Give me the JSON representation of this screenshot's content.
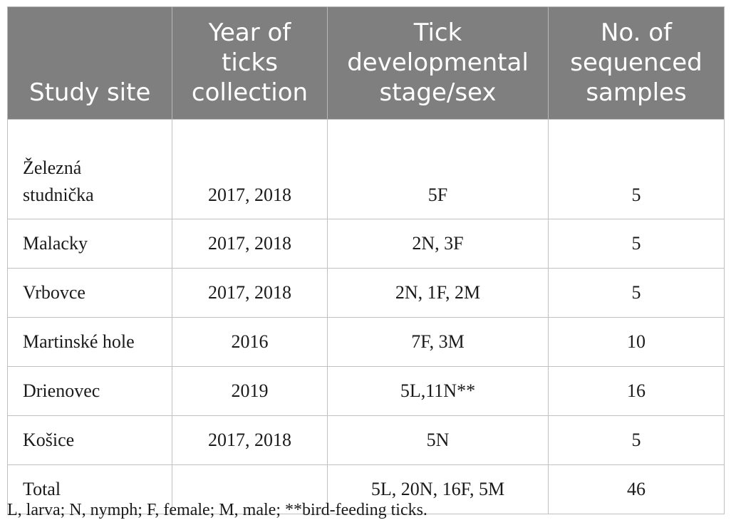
{
  "table": {
    "headers": [
      [
        "Study site"
      ],
      [
        "Year of",
        "ticks",
        "collection"
      ],
      [
        "Tick",
        "developmental",
        "stage/sex"
      ],
      [
        "No. of",
        "sequenced",
        "samples"
      ]
    ],
    "rows": [
      {
        "site_lines": [
          "Železná",
          "studnička"
        ],
        "year": "2017, 2018",
        "stage": "5F",
        "samples": "5"
      },
      {
        "site": "Malacky",
        "year": "2017, 2018",
        "stage": "2N, 3F",
        "samples": "5"
      },
      {
        "site": "Vrbovce",
        "year": "2017, 2018",
        "stage": "2N, 1F, 2M",
        "samples": "5"
      },
      {
        "site": "Martinské hole",
        "year": "2016",
        "stage": "7F, 3M",
        "samples": "10"
      },
      {
        "site": "Drienovec",
        "year": "2019",
        "stage": "5L,11N**",
        "samples": "16"
      },
      {
        "site": "Košice",
        "year": "2017, 2018",
        "stage": "5N",
        "samples": "5"
      },
      {
        "site": "Total",
        "year": "",
        "stage": "5L, 20N, 16F, 5M",
        "samples": "46"
      }
    ]
  },
  "footnote": "L, larva; N, nymph; F, female; M, male; **bird-feeding ticks."
}
